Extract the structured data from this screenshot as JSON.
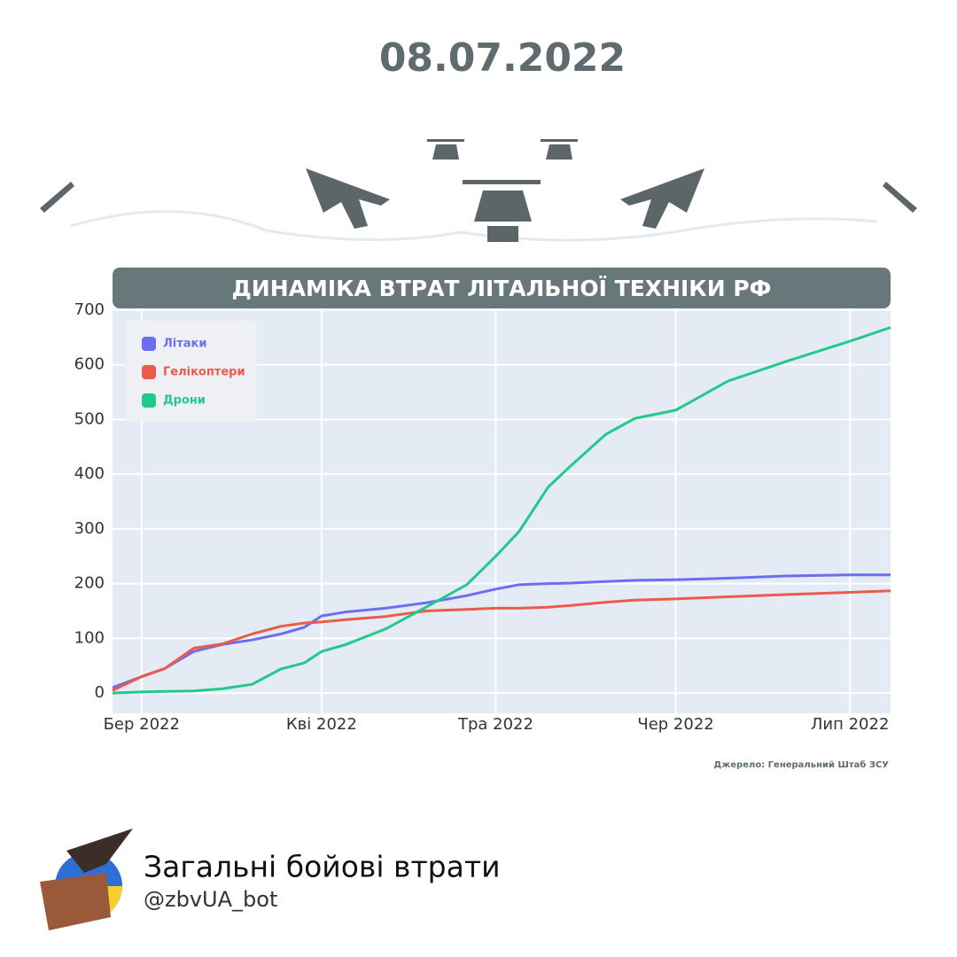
{
  "header": {
    "date": "08.07.2022"
  },
  "chart_data": {
    "type": "line",
    "title": "ДИНАМІКА ВТРАТ ЛІТАЛЬНОЇ ТЕХНІКИ РФ",
    "source": "Джерело: Генеральний Штаб ЗСУ",
    "x": [
      "2022-02-24",
      "2022-03-01",
      "2022-03-05",
      "2022-03-10",
      "2022-03-15",
      "2022-03-20",
      "2022-03-25",
      "2022-03-29",
      "2022-04-01",
      "2022-04-05",
      "2022-04-12",
      "2022-04-19",
      "2022-04-26",
      "2022-05-01",
      "2022-05-05",
      "2022-05-10",
      "2022-05-14",
      "2022-05-20",
      "2022-05-25",
      "2022-06-01",
      "2022-06-10",
      "2022-06-20",
      "2022-07-01",
      "2022-07-08"
    ],
    "series": [
      {
        "name": "Літаки",
        "color": "#6b6ef0",
        "values": [
          10,
          30,
          45,
          76,
          89,
          97,
          108,
          120,
          141,
          148,
          155,
          165,
          178,
          190,
          198,
          200,
          201,
          204,
          206,
          207,
          210,
          214,
          216,
          216
        ]
      },
      {
        "name": "Гелікоптери",
        "color": "#ea5b4b",
        "values": [
          5,
          30,
          45,
          82,
          90,
          108,
          122,
          128,
          130,
          134,
          140,
          150,
          153,
          155,
          155,
          157,
          160,
          166,
          170,
          172,
          176,
          180,
          184,
          187
        ]
      },
      {
        "name": "Дрони",
        "color": "#22c98c",
        "values": [
          0,
          2,
          3,
          4,
          8,
          16,
          44,
          55,
          76,
          88,
          117,
          157,
          198,
          250,
          295,
          376,
          416,
          473,
          502,
          517,
          570,
          606,
          643,
          668
        ]
      }
    ],
    "xlim": [
      "2022-02-24",
      "2022-07-08"
    ],
    "xticks": [
      {
        "value": "2022-03-01",
        "label": "Бер 2022"
      },
      {
        "value": "2022-04-01",
        "label": "Кві 2022"
      },
      {
        "value": "2022-05-01",
        "label": "Тра 2022"
      },
      {
        "value": "2022-06-01",
        "label": "Чер 2022"
      },
      {
        "value": "2022-07-01",
        "label": "Лип 2022"
      }
    ],
    "ylim": [
      -37,
      703
    ],
    "yticks": [
      0,
      100,
      200,
      300,
      400,
      500,
      600,
      700
    ],
    "grid": true,
    "legend": "upper left"
  },
  "footer": {
    "name": "Загальні бойові втрати",
    "handle": "@zbvUA_bot"
  }
}
